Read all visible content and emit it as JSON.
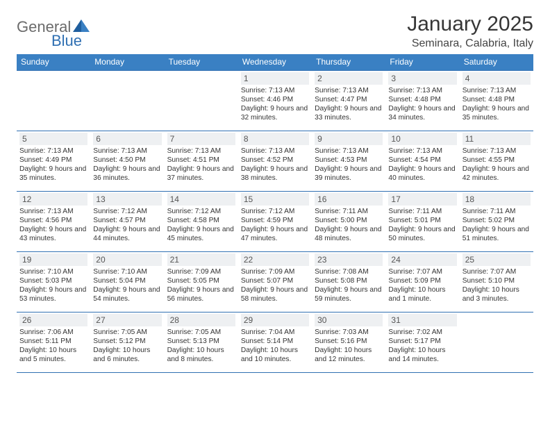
{
  "brand": {
    "part1": "General",
    "part2": "Blue"
  },
  "title": "January 2025",
  "location": "Seminara, Calabria, Italy",
  "colors": {
    "header_bg": "#3a80c3",
    "border": "#2f6fb2",
    "daynum_bg": "#eef0f2",
    "text": "#333333",
    "title": "#363636"
  },
  "day_headers": [
    "Sunday",
    "Monday",
    "Tuesday",
    "Wednesday",
    "Thursday",
    "Friday",
    "Saturday"
  ],
  "weeks": [
    [
      {
        "day": "",
        "sunrise": "",
        "sunset": "",
        "daylight": ""
      },
      {
        "day": "",
        "sunrise": "",
        "sunset": "",
        "daylight": ""
      },
      {
        "day": "",
        "sunrise": "",
        "sunset": "",
        "daylight": ""
      },
      {
        "day": "1",
        "sunrise": "Sunrise: 7:13 AM",
        "sunset": "Sunset: 4:46 PM",
        "daylight": "Daylight: 9 hours and 32 minutes."
      },
      {
        "day": "2",
        "sunrise": "Sunrise: 7:13 AM",
        "sunset": "Sunset: 4:47 PM",
        "daylight": "Daylight: 9 hours and 33 minutes."
      },
      {
        "day": "3",
        "sunrise": "Sunrise: 7:13 AM",
        "sunset": "Sunset: 4:48 PM",
        "daylight": "Daylight: 9 hours and 34 minutes."
      },
      {
        "day": "4",
        "sunrise": "Sunrise: 7:13 AM",
        "sunset": "Sunset: 4:48 PM",
        "daylight": "Daylight: 9 hours and 35 minutes."
      }
    ],
    [
      {
        "day": "5",
        "sunrise": "Sunrise: 7:13 AM",
        "sunset": "Sunset: 4:49 PM",
        "daylight": "Daylight: 9 hours and 35 minutes."
      },
      {
        "day": "6",
        "sunrise": "Sunrise: 7:13 AM",
        "sunset": "Sunset: 4:50 PM",
        "daylight": "Daylight: 9 hours and 36 minutes."
      },
      {
        "day": "7",
        "sunrise": "Sunrise: 7:13 AM",
        "sunset": "Sunset: 4:51 PM",
        "daylight": "Daylight: 9 hours and 37 minutes."
      },
      {
        "day": "8",
        "sunrise": "Sunrise: 7:13 AM",
        "sunset": "Sunset: 4:52 PM",
        "daylight": "Daylight: 9 hours and 38 minutes."
      },
      {
        "day": "9",
        "sunrise": "Sunrise: 7:13 AM",
        "sunset": "Sunset: 4:53 PM",
        "daylight": "Daylight: 9 hours and 39 minutes."
      },
      {
        "day": "10",
        "sunrise": "Sunrise: 7:13 AM",
        "sunset": "Sunset: 4:54 PM",
        "daylight": "Daylight: 9 hours and 40 minutes."
      },
      {
        "day": "11",
        "sunrise": "Sunrise: 7:13 AM",
        "sunset": "Sunset: 4:55 PM",
        "daylight": "Daylight: 9 hours and 42 minutes."
      }
    ],
    [
      {
        "day": "12",
        "sunrise": "Sunrise: 7:13 AM",
        "sunset": "Sunset: 4:56 PM",
        "daylight": "Daylight: 9 hours and 43 minutes."
      },
      {
        "day": "13",
        "sunrise": "Sunrise: 7:12 AM",
        "sunset": "Sunset: 4:57 PM",
        "daylight": "Daylight: 9 hours and 44 minutes."
      },
      {
        "day": "14",
        "sunrise": "Sunrise: 7:12 AM",
        "sunset": "Sunset: 4:58 PM",
        "daylight": "Daylight: 9 hours and 45 minutes."
      },
      {
        "day": "15",
        "sunrise": "Sunrise: 7:12 AM",
        "sunset": "Sunset: 4:59 PM",
        "daylight": "Daylight: 9 hours and 47 minutes."
      },
      {
        "day": "16",
        "sunrise": "Sunrise: 7:11 AM",
        "sunset": "Sunset: 5:00 PM",
        "daylight": "Daylight: 9 hours and 48 minutes."
      },
      {
        "day": "17",
        "sunrise": "Sunrise: 7:11 AM",
        "sunset": "Sunset: 5:01 PM",
        "daylight": "Daylight: 9 hours and 50 minutes."
      },
      {
        "day": "18",
        "sunrise": "Sunrise: 7:11 AM",
        "sunset": "Sunset: 5:02 PM",
        "daylight": "Daylight: 9 hours and 51 minutes."
      }
    ],
    [
      {
        "day": "19",
        "sunrise": "Sunrise: 7:10 AM",
        "sunset": "Sunset: 5:03 PM",
        "daylight": "Daylight: 9 hours and 53 minutes."
      },
      {
        "day": "20",
        "sunrise": "Sunrise: 7:10 AM",
        "sunset": "Sunset: 5:04 PM",
        "daylight": "Daylight: 9 hours and 54 minutes."
      },
      {
        "day": "21",
        "sunrise": "Sunrise: 7:09 AM",
        "sunset": "Sunset: 5:05 PM",
        "daylight": "Daylight: 9 hours and 56 minutes."
      },
      {
        "day": "22",
        "sunrise": "Sunrise: 7:09 AM",
        "sunset": "Sunset: 5:07 PM",
        "daylight": "Daylight: 9 hours and 58 minutes."
      },
      {
        "day": "23",
        "sunrise": "Sunrise: 7:08 AM",
        "sunset": "Sunset: 5:08 PM",
        "daylight": "Daylight: 9 hours and 59 minutes."
      },
      {
        "day": "24",
        "sunrise": "Sunrise: 7:07 AM",
        "sunset": "Sunset: 5:09 PM",
        "daylight": "Daylight: 10 hours and 1 minute."
      },
      {
        "day": "25",
        "sunrise": "Sunrise: 7:07 AM",
        "sunset": "Sunset: 5:10 PM",
        "daylight": "Daylight: 10 hours and 3 minutes."
      }
    ],
    [
      {
        "day": "26",
        "sunrise": "Sunrise: 7:06 AM",
        "sunset": "Sunset: 5:11 PM",
        "daylight": "Daylight: 10 hours and 5 minutes."
      },
      {
        "day": "27",
        "sunrise": "Sunrise: 7:05 AM",
        "sunset": "Sunset: 5:12 PM",
        "daylight": "Daylight: 10 hours and 6 minutes."
      },
      {
        "day": "28",
        "sunrise": "Sunrise: 7:05 AM",
        "sunset": "Sunset: 5:13 PM",
        "daylight": "Daylight: 10 hours and 8 minutes."
      },
      {
        "day": "29",
        "sunrise": "Sunrise: 7:04 AM",
        "sunset": "Sunset: 5:14 PM",
        "daylight": "Daylight: 10 hours and 10 minutes."
      },
      {
        "day": "30",
        "sunrise": "Sunrise: 7:03 AM",
        "sunset": "Sunset: 5:16 PM",
        "daylight": "Daylight: 10 hours and 12 minutes."
      },
      {
        "day": "31",
        "sunrise": "Sunrise: 7:02 AM",
        "sunset": "Sunset: 5:17 PM",
        "daylight": "Daylight: 10 hours and 14 minutes."
      },
      {
        "day": "",
        "sunrise": "",
        "sunset": "",
        "daylight": ""
      }
    ]
  ]
}
